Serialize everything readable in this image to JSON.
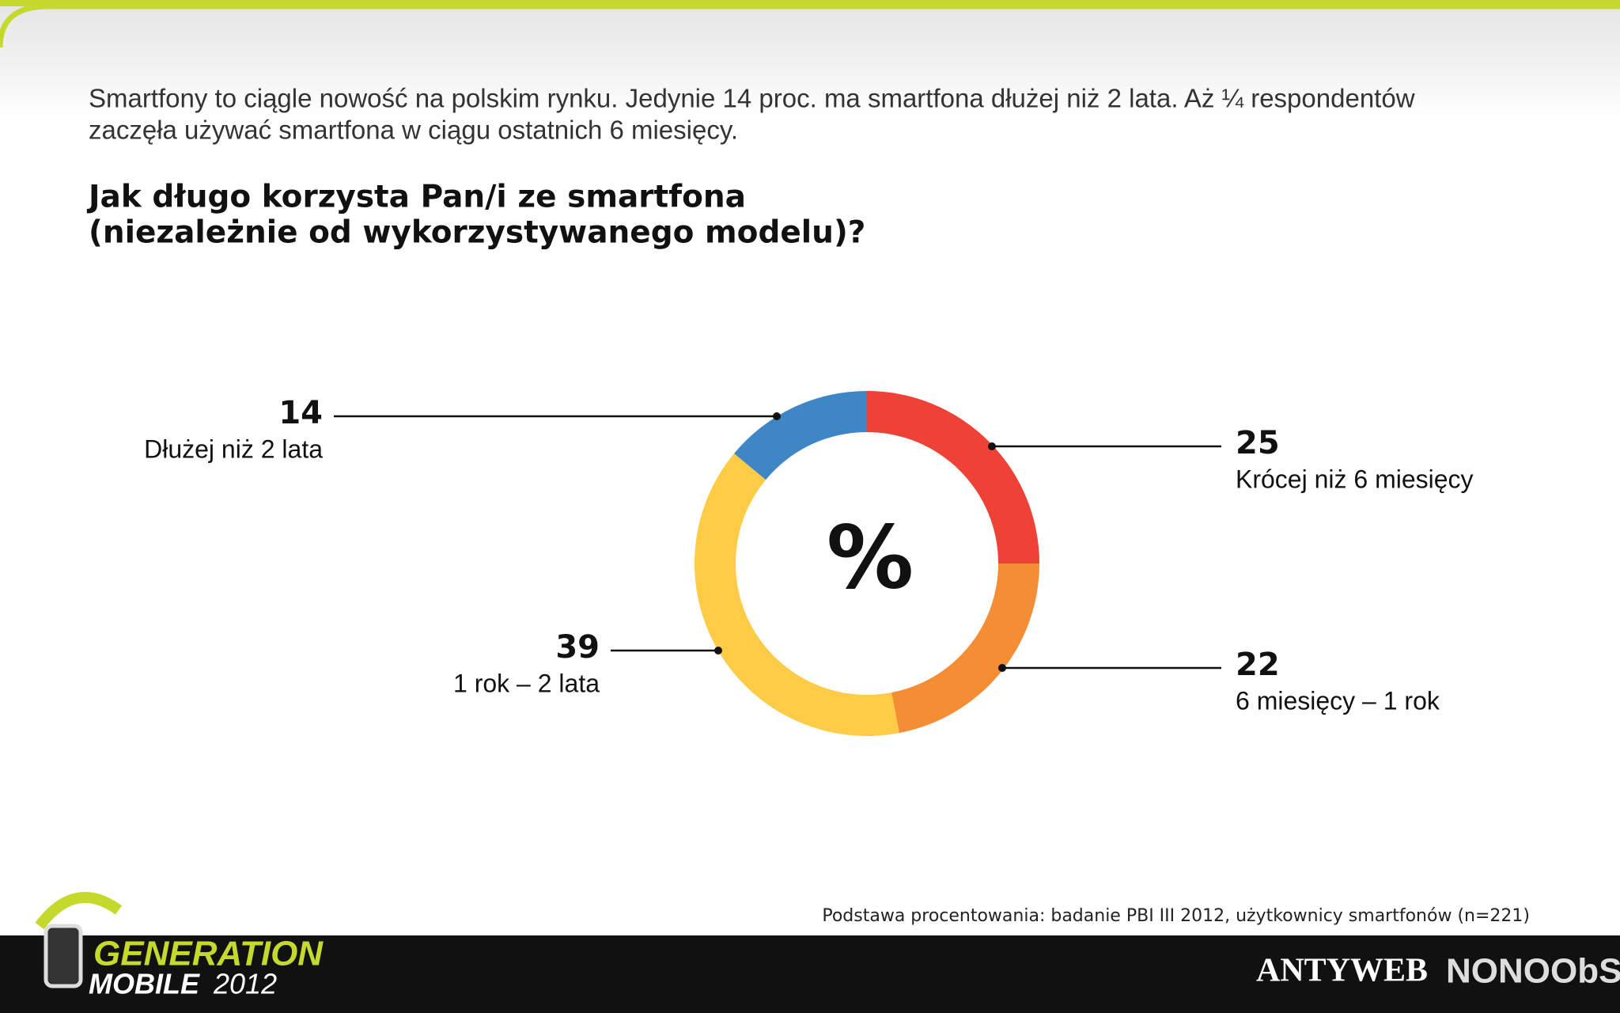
{
  "intro": [
    "Smartfony to ciągle nowość na polskim rynku. Jedynie 14 proc. ma smartfona dłużej niż 2 lata. Aż ¼ respondentów",
    "zaczęła używać smartfona w ciągu ostatnich 6 miesięcy."
  ],
  "chart_data": {
    "type": "donut",
    "title": [
      "Jak długo korzysta Pan/i ze smartfona",
      "(niezależnie od wykorzystywanego modelu)?"
    ],
    "center_label": "%",
    "categories": [
      "Krócej niż 6 miesięcy",
      "6 miesięcy – 1 rok",
      "1 rok – 2 lata",
      "Dłużej niż 2 lata"
    ],
    "values": [
      25,
      22,
      39,
      14
    ],
    "colors": [
      "#ee4236",
      "#f58d35",
      "#fdcb45",
      "#3e86c6"
    ]
  },
  "footnote": "Podstawa procentowania: badanie PBI III 2012, użytkownicy smartfonów (n=221)",
  "footer": {
    "logo_top": "GENERATION",
    "logo_bottom": "MOBILE",
    "logo_year": "2012",
    "partner1": "ANTYWEB",
    "partner2": "NONOObS"
  }
}
